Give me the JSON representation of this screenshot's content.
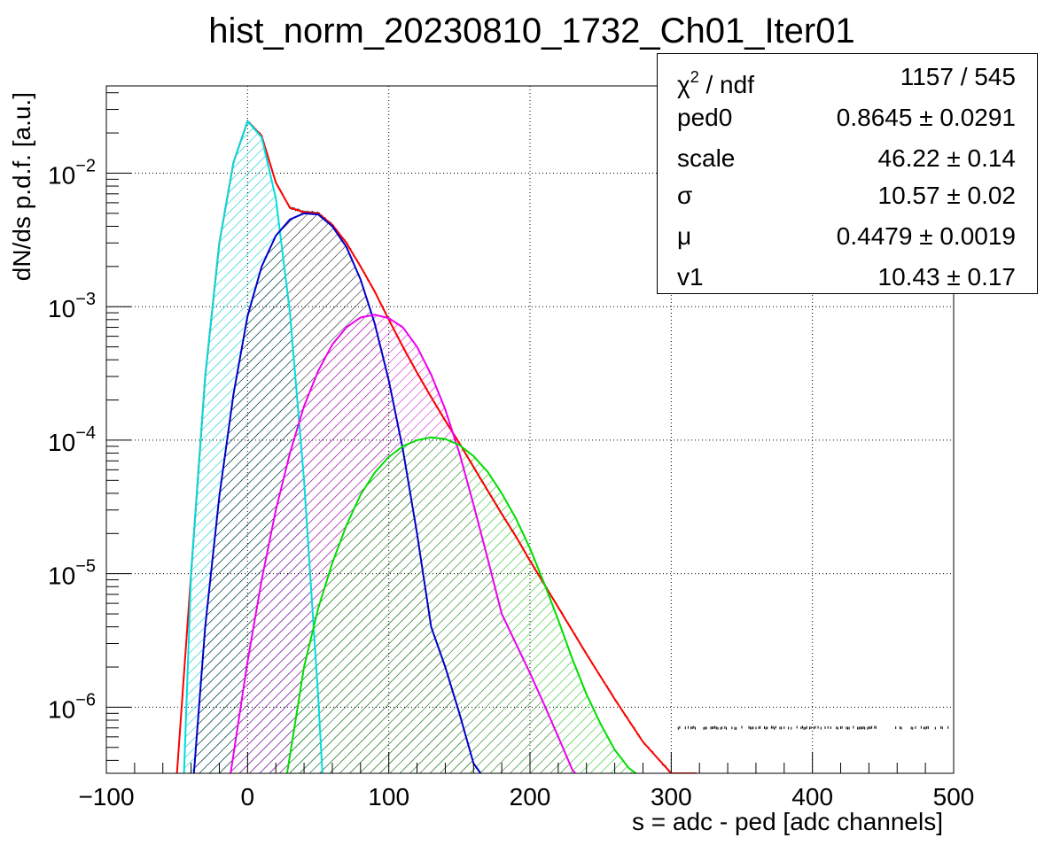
{
  "chart_data": {
    "type": "histogram with fit functions",
    "title": "hist_norm_20230810_1732_Ch01_Iter01",
    "xlabel": "s = adc - ped [adc channels]",
    "ylabel": "dN/ds p.d.f. [a.u.]",
    "xlim": [
      -100,
      500
    ],
    "ylim": [
      3.2e-07,
      0.045
    ],
    "yscale": "log",
    "grid": true,
    "x_ticks": [
      -100,
      0,
      100,
      200,
      300,
      400,
      500
    ],
    "x_tick_labels": [
      "−100",
      "0",
      "100",
      "200",
      "300",
      "400",
      "500"
    ],
    "y_tick_labels": [
      {
        "base": "10",
        "exp": "−2",
        "value": 0.01
      },
      {
        "base": "10",
        "exp": "−3",
        "value": 0.001
      },
      {
        "base": "10",
        "exp": "−4",
        "value": 0.0001
      },
      {
        "base": "10",
        "exp": "−5",
        "value": 1e-05
      },
      {
        "base": "10",
        "exp": "−6",
        "value": 1e-06
      }
    ],
    "series": [
      {
        "color": "#ff0000",
        "kind": "total-fit",
        "points": [
          [
            -50,
            3.2e-07
          ],
          [
            -40,
            1e-05
          ],
          [
            -30,
            0.0003
          ],
          [
            -20,
            0.003
          ],
          [
            -10,
            0.012
          ],
          [
            0,
            0.0245
          ],
          [
            10,
            0.019
          ],
          [
            20,
            0.0085
          ],
          [
            30,
            0.0055
          ],
          [
            40,
            0.0051
          ],
          [
            50,
            0.005
          ],
          [
            60,
            0.0041
          ],
          [
            70,
            0.003
          ],
          [
            80,
            0.002
          ],
          [
            90,
            0.0013
          ],
          [
            100,
            0.0008
          ],
          [
            110,
            0.0005
          ],
          [
            120,
            0.00032
          ],
          [
            130,
            0.00021
          ],
          [
            140,
            0.00014
          ],
          [
            150,
            9.5e-05
          ],
          [
            160,
            6.3e-05
          ],
          [
            170,
            4.2e-05
          ],
          [
            180,
            2.8e-05
          ],
          [
            190,
            1.9e-05
          ],
          [
            200,
            1.25e-05
          ],
          [
            220,
            5.6e-06
          ],
          [
            240,
            2.5e-06
          ],
          [
            260,
            1.15e-06
          ],
          [
            280,
            5.5e-07
          ],
          [
            300,
            3.2e-07
          ],
          [
            318,
            3.2e-07
          ]
        ]
      },
      {
        "color": "#00dddd",
        "kind": "component-ped",
        "points": [
          [
            -45,
            3.2e-07
          ],
          [
            -40,
            1e-05
          ],
          [
            -30,
            0.0003
          ],
          [
            -20,
            0.003
          ],
          [
            -10,
            0.012
          ],
          [
            0,
            0.0245
          ],
          [
            10,
            0.0185
          ],
          [
            20,
            0.0065
          ],
          [
            30,
            0.0009
          ],
          [
            40,
            5e-05
          ],
          [
            50,
            1.2e-06
          ],
          [
            53,
            3.2e-07
          ]
        ]
      },
      {
        "color": "#0000cc",
        "kind": "component-1",
        "points": [
          [
            -38,
            3.2e-07
          ],
          [
            -30,
            4e-06
          ],
          [
            -20,
            3.8e-05
          ],
          [
            -10,
            0.00022
          ],
          [
            0,
            0.00085
          ],
          [
            10,
            0.002
          ],
          [
            20,
            0.0034
          ],
          [
            30,
            0.0045
          ],
          [
            40,
            0.005
          ],
          [
            50,
            0.0049
          ],
          [
            60,
            0.004
          ],
          [
            70,
            0.0028
          ],
          [
            80,
            0.0016
          ],
          [
            90,
            0.00075
          ],
          [
            100,
            0.00028
          ],
          [
            110,
            8.5e-05
          ],
          [
            120,
            2e-05
          ],
          [
            130,
            4e-06
          ],
          [
            140,
            2e-06
          ],
          [
            150,
            9e-07
          ],
          [
            160,
            3.8e-07
          ],
          [
            165,
            3.2e-07
          ]
        ]
      },
      {
        "color": "#ee00ee",
        "kind": "component-2",
        "points": [
          [
            -12,
            3.2e-07
          ],
          [
            0,
            2.2e-06
          ],
          [
            10,
            9e-06
          ],
          [
            20,
            3e-05
          ],
          [
            30,
            8e-05
          ],
          [
            40,
            0.00018
          ],
          [
            50,
            0.00033
          ],
          [
            60,
            0.00052
          ],
          [
            70,
            0.0007
          ],
          [
            80,
            0.00083
          ],
          [
            90,
            0.00087
          ],
          [
            100,
            0.00082
          ],
          [
            110,
            0.0007
          ],
          [
            120,
            0.0005
          ],
          [
            130,
            0.00031
          ],
          [
            140,
            0.00017
          ],
          [
            150,
            8e-05
          ],
          [
            160,
            3.3e-05
          ],
          [
            170,
            1.3e-05
          ],
          [
            180,
            5e-06
          ],
          [
            190,
            3e-06
          ],
          [
            200,
            1.8e-06
          ],
          [
            210,
            1.05e-06
          ],
          [
            220,
            6e-07
          ],
          [
            230,
            3.4e-07
          ],
          [
            232,
            3.2e-07
          ]
        ]
      },
      {
        "color": "#00dd00",
        "kind": "component-3",
        "points": [
          [
            28,
            3.2e-07
          ],
          [
            40,
            2e-06
          ],
          [
            50,
            5.5e-06
          ],
          [
            60,
            1.2e-05
          ],
          [
            70,
            2.3e-05
          ],
          [
            80,
            3.9e-05
          ],
          [
            90,
            5.7e-05
          ],
          [
            100,
            7.5e-05
          ],
          [
            110,
            9e-05
          ],
          [
            120,
            0.0001
          ],
          [
            130,
            0.000105
          ],
          [
            140,
            0.000102
          ],
          [
            150,
            9.2e-05
          ],
          [
            160,
            7.6e-05
          ],
          [
            170,
            5.8e-05
          ],
          [
            180,
            4e-05
          ],
          [
            190,
            2.6e-05
          ],
          [
            200,
            1.55e-05
          ],
          [
            210,
            8.5e-06
          ],
          [
            220,
            4.5e-06
          ],
          [
            230,
            2.3e-06
          ],
          [
            240,
            1.25e-06
          ],
          [
            250,
            7.5e-07
          ],
          [
            260,
            4.8e-07
          ],
          [
            270,
            3.5e-07
          ],
          [
            275,
            3.2e-07
          ]
        ]
      }
    ]
  },
  "stats_box": {
    "rows": [
      {
        "name": "χ",
        "name_sup": "2",
        "name_rest": " / ndf",
        "value": "1157 / 545"
      },
      {
        "name": "ped0",
        "value": "0.8645 ± 0.0291"
      },
      {
        "name": "scale",
        "value": "46.22 ± 0.14"
      },
      {
        "name": "σ",
        "value": "10.57 ± 0.02"
      },
      {
        "name": "μ",
        "value": "0.4479 ± 0.0019"
      },
      {
        "name": "v1",
        "value": "10.43 ± 0.17"
      }
    ]
  }
}
